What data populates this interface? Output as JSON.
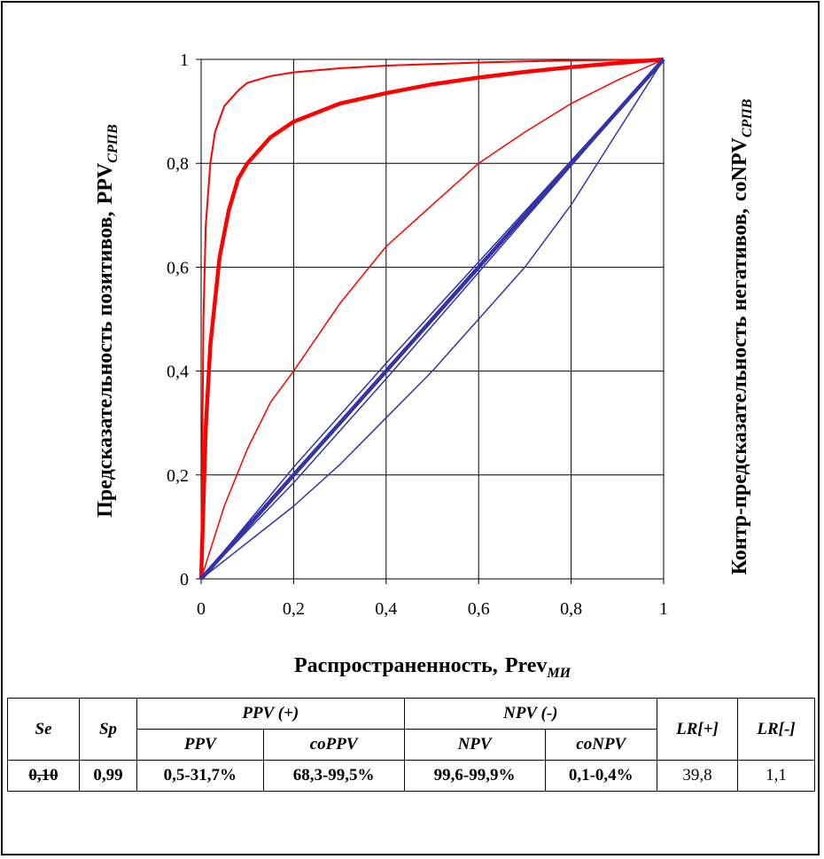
{
  "chart_data": {
    "type": "line",
    "xlabel": "Распространенность,",
    "xlabel_var": "Prev",
    "xlabel_sub": "МИ",
    "ylabel_left": "Предсказательность позитивов,",
    "ylabel_left_var": "PPV",
    "ylabel_left_sub": "СРПВ",
    "ylabel_right": "Контр-предсказательность негативов,",
    "ylabel_right_var": "coNPV",
    "ylabel_right_sub": "СРПВ",
    "xlim": [
      0,
      1
    ],
    "ylim": [
      0,
      1
    ],
    "xticks": [
      "0",
      "0,2",
      "0,4",
      "0,6",
      "0,8",
      "1"
    ],
    "yticks": [
      "0",
      "0,2",
      "0,4",
      "0,6",
      "0,8",
      "1"
    ],
    "grid": true,
    "series": [
      {
        "color": "#ff0000",
        "width": 2,
        "x": [
          0,
          0.005,
          0.01,
          0.02,
          0.03,
          0.05,
          0.08,
          0.1,
          0.15,
          0.2,
          0.3,
          0.4,
          0.5,
          0.6,
          0.7,
          0.8,
          0.9,
          1
        ],
        "y": [
          0,
          0.5,
          0.68,
          0.8,
          0.86,
          0.91,
          0.94,
          0.955,
          0.968,
          0.975,
          0.983,
          0.988,
          0.991,
          0.994,
          0.996,
          0.998,
          0.999,
          1
        ]
      },
      {
        "color": "#ff0000",
        "width": 4.5,
        "x": [
          0,
          0.01,
          0.02,
          0.04,
          0.06,
          0.08,
          0.1,
          0.15,
          0.2,
          0.3,
          0.4,
          0.5,
          0.6,
          0.7,
          0.8,
          0.9,
          1
        ],
        "y": [
          0,
          0.29,
          0.45,
          0.62,
          0.71,
          0.77,
          0.8,
          0.85,
          0.88,
          0.915,
          0.935,
          0.952,
          0.965,
          0.976,
          0.985,
          0.993,
          1
        ]
      },
      {
        "color": "#ff0000",
        "width": 1.5,
        "x": [
          0,
          0.05,
          0.1,
          0.15,
          0.2,
          0.3,
          0.4,
          0.5,
          0.6,
          0.7,
          0.8,
          0.9,
          1
        ],
        "y": [
          0,
          0.14,
          0.25,
          0.34,
          0.4,
          0.53,
          0.64,
          0.72,
          0.8,
          0.86,
          0.915,
          0.96,
          1
        ]
      },
      {
        "color": "#3333aa",
        "width": 1.5,
        "x": [
          0,
          0.2,
          0.4,
          0.6,
          0.8,
          1
        ],
        "y": [
          0,
          0.215,
          0.415,
          0.61,
          0.805,
          1
        ]
      },
      {
        "color": "#3333aa",
        "width": 4.5,
        "x": [
          0,
          0.2,
          0.4,
          0.6,
          0.8,
          1
        ],
        "y": [
          0,
          0.2,
          0.4,
          0.6,
          0.8,
          1
        ]
      },
      {
        "color": "#3333aa",
        "width": 1.5,
        "x": [
          0,
          0.2,
          0.4,
          0.6,
          0.8,
          1
        ],
        "y": [
          0,
          0.185,
          0.385,
          0.59,
          0.795,
          1
        ]
      },
      {
        "color": "#3333aa",
        "width": 1.5,
        "x": [
          0,
          0.1,
          0.2,
          0.3,
          0.4,
          0.5,
          0.6,
          0.7,
          0.8,
          0.9,
          1
        ],
        "y": [
          0,
          0.07,
          0.14,
          0.22,
          0.31,
          0.4,
          0.5,
          0.6,
          0.72,
          0.86,
          1
        ]
      }
    ]
  },
  "table": {
    "se_header": "Se",
    "sp_header": "Sp",
    "ppv_group": "PPV (+)",
    "npv_group": "NPV (-)",
    "lrp_header": "LR[+]",
    "lrm_header": "LR[-]",
    "ppv_sub": "PPV",
    "coppv_sub": "coPPV",
    "npv_sub": "NPV",
    "conpv_sub": "coNPV",
    "row": {
      "se": "0,10",
      "sp": "0,99",
      "ppv": "0,5-31,7%",
      "coppv": "68,3-99,5%",
      "npv": "99,6-99,9%",
      "conpv": "0,1-0,4%",
      "lrp": "39,8",
      "lrm": "1,1"
    }
  }
}
